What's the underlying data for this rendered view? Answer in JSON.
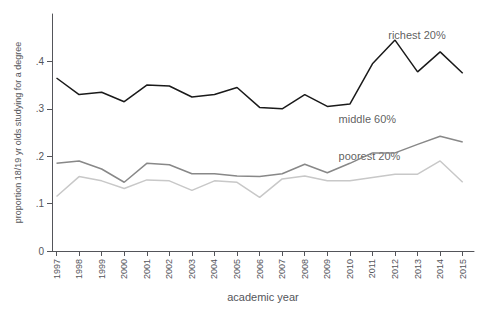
{
  "chart_data": {
    "type": "line",
    "x": [
      1997,
      1998,
      1999,
      2000,
      2001,
      2002,
      2003,
      2004,
      2005,
      2006,
      2007,
      2008,
      2009,
      2010,
      2011,
      2012,
      2013,
      2014,
      2015
    ],
    "series": [
      {
        "color": "#1a1a1a",
        "values": [
          0.365,
          0.33,
          0.335,
          0.315,
          0.35,
          0.348,
          0.325,
          0.33,
          0.345,
          0.303,
          0.3,
          0.33,
          0.305,
          0.31,
          0.395,
          0.445,
          0.378,
          0.42,
          0.375
        ]
      },
      {
        "color": "#888888",
        "values": [
          0.185,
          0.19,
          0.173,
          0.145,
          0.185,
          0.182,
          0.163,
          0.163,
          0.158,
          0.157,
          0.163,
          0.183,
          0.165,
          0.185,
          0.207,
          0.207,
          0.225,
          0.242,
          0.23
        ]
      },
      {
        "color": "#c8c8c8",
        "values": [
          0.115,
          0.157,
          0.148,
          0.132,
          0.15,
          0.148,
          0.128,
          0.148,
          0.145,
          0.113,
          0.152,
          0.158,
          0.148,
          0.148,
          0.155,
          0.162,
          0.162,
          0.19,
          0.145
        ]
      }
    ],
    "annotations": [
      {
        "text": "richest 20%",
        "x": 2011.7,
        "y": 0.455
      },
      {
        "text": "middle 60%",
        "x": 2009.5,
        "y": 0.278
      },
      {
        "text": "poorest 20%",
        "x": 2009.5,
        "y": 0.2
      }
    ],
    "xlabel": "academic year",
    "ylabel": "proportion 18/19 yr olds studying for a degree",
    "xlim": [
      1996.8,
      2015.5
    ],
    "xticks": [
      1997,
      1998,
      1999,
      2000,
      2001,
      2002,
      2003,
      2004,
      2005,
      2006,
      2007,
      2008,
      2009,
      2010,
      2011,
      2012,
      2013,
      2014,
      2015
    ],
    "ylim": [
      0,
      0.5
    ],
    "yticks": [
      0,
      {
        "value": 0.1,
        "label": ".1"
      },
      {
        "value": 0.2,
        "label": ".2"
      },
      {
        "value": 0.3,
        "label": ".3"
      },
      {
        "value": 0.4,
        "label": ".4"
      }
    ],
    "grid": false
  }
}
